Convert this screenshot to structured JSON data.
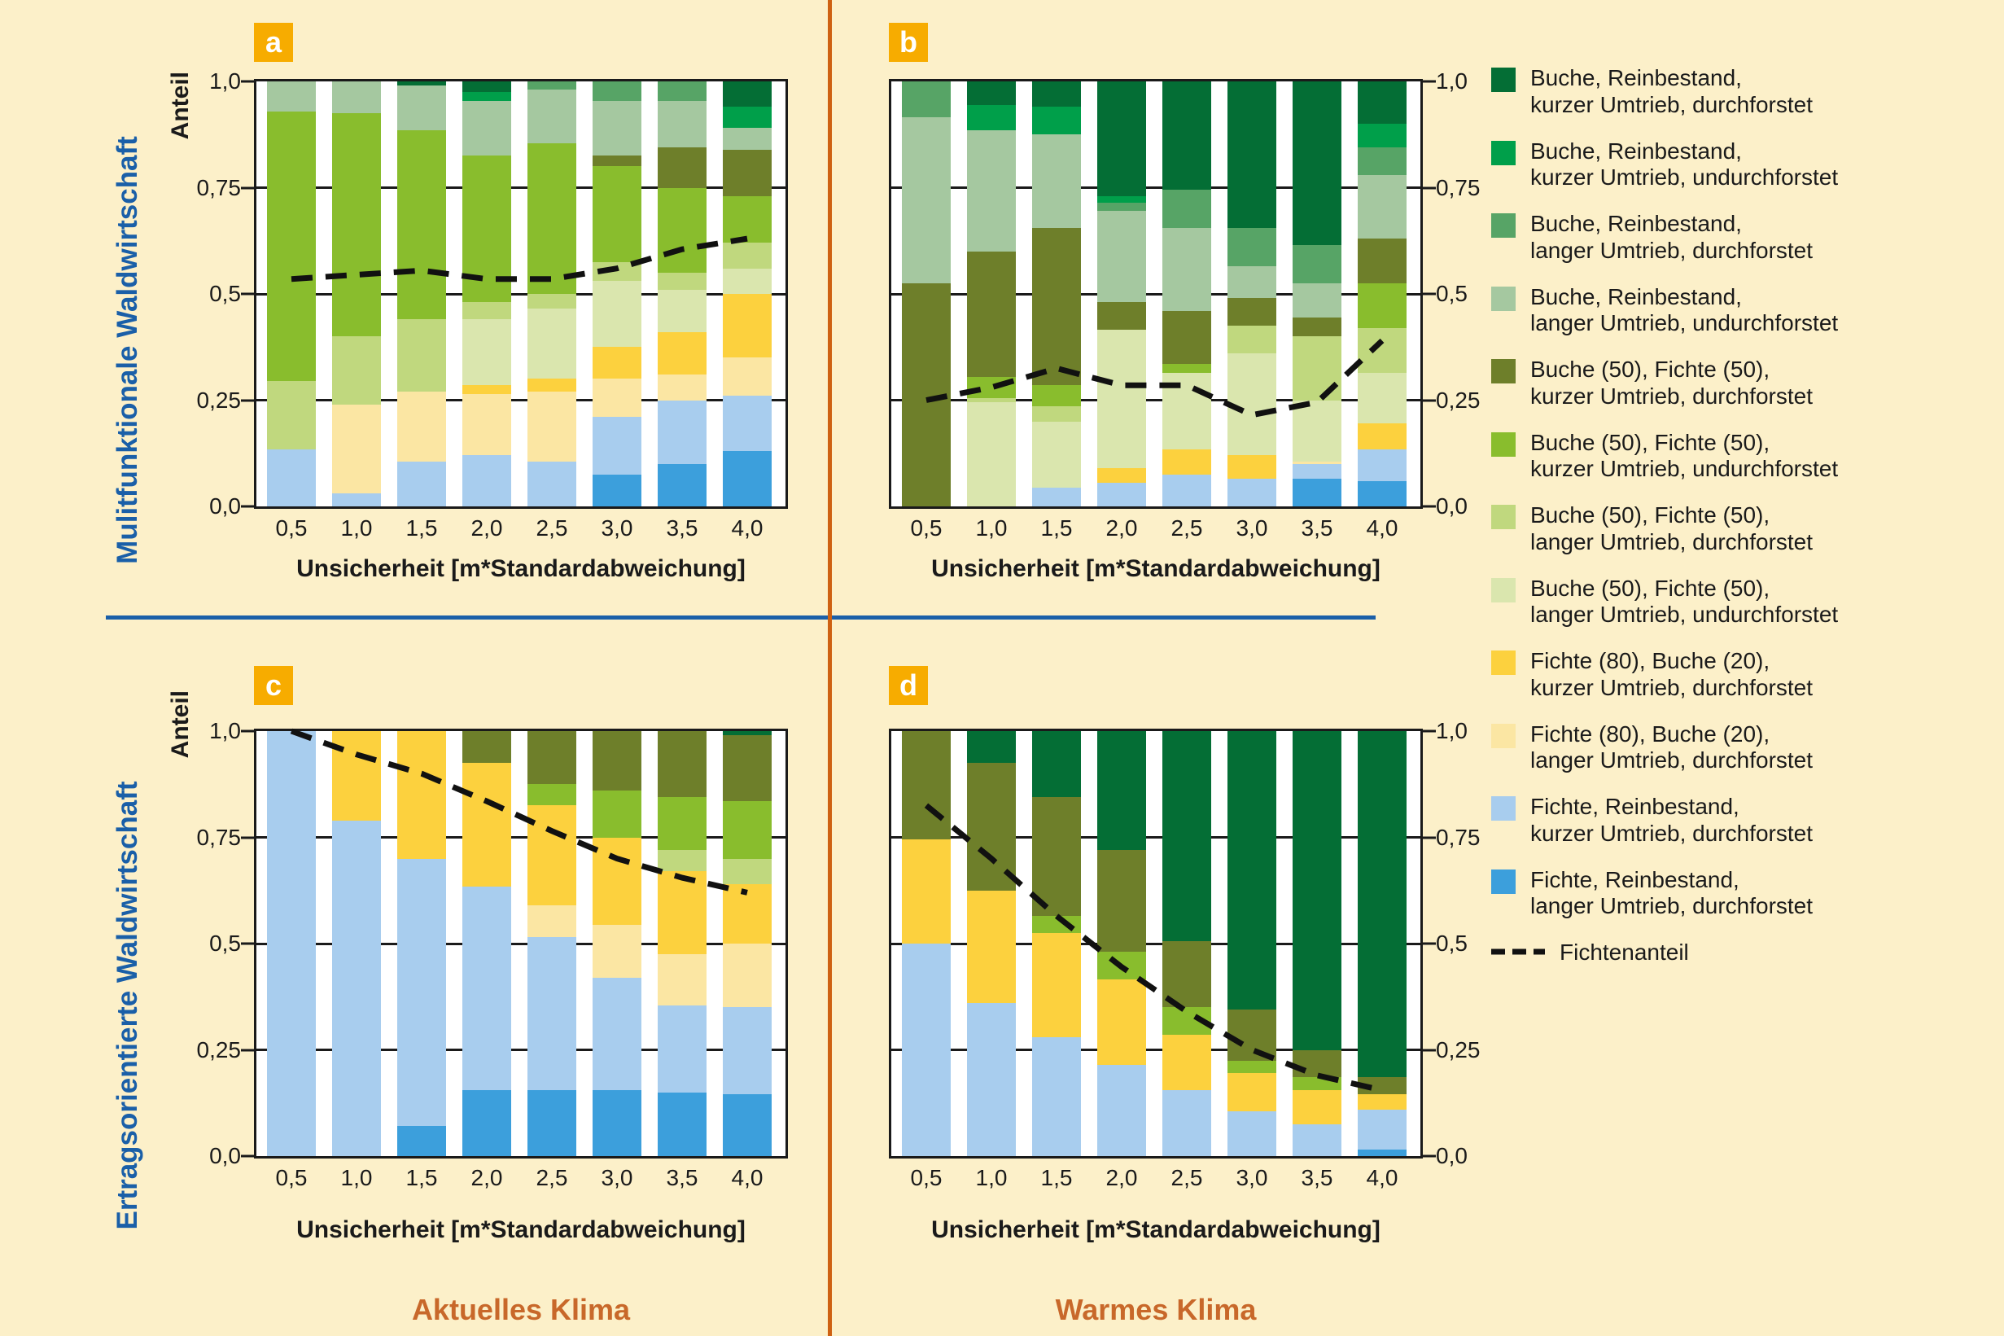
{
  "badges": {
    "a": "a",
    "b": "b",
    "c": "c",
    "d": "d"
  },
  "row_labels": {
    "top": "Mulitfunktionale Waldwirtschaft",
    "bottom": "Ertragsorientierte Waldwirtschaft"
  },
  "col_labels": {
    "left": "Aktuelles Klima",
    "right": "Warmes Klima"
  },
  "axis": {
    "y_label": "Anteil",
    "x_label": "Unsicherheit [m*Standardabweichung]",
    "y_ticks": [
      "1,0",
      "0,75",
      "0,5",
      "0,25",
      "0,0"
    ],
    "x_ticks": [
      "0,5",
      "1,0",
      "1,5",
      "2,0",
      "2,5",
      "3,0",
      "3,5",
      "4,0"
    ]
  },
  "colors": {
    "background": "#FCF0C9",
    "badge": "#F7AC00",
    "accent_blue": "#1A5FA8",
    "climate_orange": "#C8682A",
    "divider_orange": "#CE6112",
    "axis_black": "#1a1a1a",
    "line_black": "#111111",
    "FRld": "#3C9FDC",
    "FRkd": "#A8CDEE",
    "FBld": "#FBE6A3",
    "FBkd": "#FCD13E",
    "BFlu": "#DAE6AE",
    "BFld": "#C0D87E",
    "BFku": "#89BD2D",
    "BFkd": "#6E7F2A",
    "BuRlu": "#A5C8A0",
    "BuRld": "#57A466",
    "BuRku": "#009F4A",
    "BuRkd": "#046E35"
  },
  "stack_order": [
    "FRld",
    "FRkd",
    "FBld",
    "FBkd",
    "BFlu",
    "BFld",
    "BFku",
    "BFkd",
    "BuRlu",
    "BuRld",
    "BuRku",
    "BuRkd"
  ],
  "legend": [
    {
      "key": "BuRkd",
      "line1": "Buche, Reinbestand,",
      "line2": "kurzer Umtrieb, durchforstet"
    },
    {
      "key": "BuRku",
      "line1": "Buche, Reinbestand,",
      "line2": "kurzer Umtrieb, undurchforstet"
    },
    {
      "key": "BuRld",
      "line1": "Buche, Reinbestand,",
      "line2": "langer Umtrieb, durchforstet"
    },
    {
      "key": "BuRlu",
      "line1": "Buche, Reinbestand,",
      "line2": "langer Umtrieb, undurchforstet"
    },
    {
      "key": "BFkd",
      "line1": "Buche (50), Fichte (50),",
      "line2": "kurzer Umtrieb, durchforstet"
    },
    {
      "key": "BFku",
      "line1": "Buche (50), Fichte (50),",
      "line2": "kurzer Umtrieb, undurchforstet"
    },
    {
      "key": "BFld",
      "line1": "Buche (50), Fichte (50),",
      "line2": "langer Umtrieb, durchforstet"
    },
    {
      "key": "BFlu",
      "line1": "Buche (50), Fichte (50),",
      "line2": "langer Umtrieb, undurchforstet"
    },
    {
      "key": "FBkd",
      "line1": "Fichte (80), Buche (20),",
      "line2": "kurzer Umtrieb, durchforstet"
    },
    {
      "key": "FBld",
      "line1": "Fichte (80), Buche (20),",
      "line2": "langer Umtrieb, durchforstet"
    },
    {
      "key": "FRkd",
      "line1": "Fichte, Reinbestand,",
      "line2": "kurzer Umtrieb, durchforstet"
    },
    {
      "key": "FRld",
      "line1": "Fichte, Reinbestand,",
      "line2": "langer Umtrieb, durchforstet"
    }
  ],
  "legend_line_label": "Fichtenanteil",
  "chart_data": [
    {
      "id": "a",
      "type": "bar",
      "stacked": true,
      "axis_side": "left",
      "categories": [
        "0,5",
        "1,0",
        "1,5",
        "2,0",
        "2,5",
        "3,0",
        "3,5",
        "4,0"
      ],
      "ylim": [
        0,
        1
      ],
      "grid": true,
      "series": {
        "FRld": [
          0,
          0,
          0,
          0,
          0,
          0.075,
          0.1,
          0.13
        ],
        "FRkd": [
          0.135,
          0.03,
          0.105,
          0.12,
          0.105,
          0.135,
          0.15,
          0.13
        ],
        "FBld": [
          0,
          0.21,
          0.165,
          0.145,
          0.165,
          0.09,
          0.06,
          0.09
        ],
        "FBkd": [
          0,
          0,
          0,
          0.02,
          0.03,
          0.075,
          0.1,
          0.15
        ],
        "BFlu": [
          0,
          0,
          0,
          0.155,
          0.165,
          0.155,
          0.1,
          0.06
        ],
        "BFld": [
          0.16,
          0.16,
          0.17,
          0.04,
          0.035,
          0.045,
          0.04,
          0.06
        ],
        "BFku": [
          0.635,
          0.525,
          0.445,
          0.345,
          0.355,
          0.225,
          0.2,
          0.11
        ],
        "BFkd": [
          0,
          0,
          0,
          0,
          0,
          0.025,
          0.095,
          0.11
        ],
        "BuRlu": [
          0.07,
          0.075,
          0.105,
          0.13,
          0.125,
          0.13,
          0.11,
          0.05
        ],
        "BuRld": [
          0,
          0,
          0,
          0,
          0.02,
          0.045,
          0.045,
          0
        ],
        "BuRku": [
          0,
          0,
          0,
          0.02,
          0,
          0,
          0,
          0.05
        ],
        "BuRkd": [
          0,
          0,
          0.01,
          0.025,
          0,
          0,
          0,
          0.06
        ]
      },
      "line": {
        "name": "Fichtenanteil",
        "values": [
          0.535,
          0.545,
          0.555,
          0.535,
          0.535,
          0.56,
          0.605,
          0.63
        ]
      }
    },
    {
      "id": "b",
      "type": "bar",
      "stacked": true,
      "axis_side": "right",
      "categories": [
        "0,5",
        "1,0",
        "1,5",
        "2,0",
        "2,5",
        "3,0",
        "3,5",
        "4,0"
      ],
      "ylim": [
        0,
        1
      ],
      "grid": true,
      "series": {
        "FRld": [
          0,
          0,
          0,
          0,
          0,
          0,
          0.065,
          0.06
        ],
        "FRkd": [
          0,
          0,
          0.045,
          0.055,
          0.075,
          0.065,
          0.035,
          0.075
        ],
        "FBld": [
          0,
          0,
          0,
          0,
          0,
          0,
          0.005,
          0
        ],
        "FBkd": [
          0,
          0,
          0,
          0.035,
          0.06,
          0.055,
          0,
          0.06
        ],
        "BFlu": [
          0,
          0.245,
          0.155,
          0.325,
          0.18,
          0.24,
          0.145,
          0.12
        ],
        "BFld": [
          0,
          0.01,
          0.035,
          0,
          0,
          0.065,
          0.15,
          0.105
        ],
        "BFku": [
          0,
          0.05,
          0.05,
          0,
          0.02,
          0,
          0,
          0.105
        ],
        "BFkd": [
          0.525,
          0.295,
          0.37,
          0.065,
          0.125,
          0.065,
          0.045,
          0.105
        ],
        "BuRlu": [
          0.39,
          0.285,
          0.22,
          0.215,
          0.195,
          0.075,
          0.08,
          0.15
        ],
        "BuRld": [
          0.085,
          0,
          0,
          0.02,
          0.09,
          0.09,
          0.09,
          0.065
        ],
        "BuRku": [
          0,
          0.06,
          0.065,
          0.015,
          0,
          0,
          0,
          0.055
        ],
        "BuRkd": [
          0,
          0.055,
          0.06,
          0.27,
          0.255,
          0.345,
          0.385,
          0.1
        ]
      },
      "line": {
        "name": "Fichtenanteil",
        "values": [
          0.25,
          0.28,
          0.325,
          0.285,
          0.285,
          0.215,
          0.245,
          0.39
        ]
      }
    },
    {
      "id": "c",
      "type": "bar",
      "stacked": true,
      "axis_side": "left",
      "categories": [
        "0,5",
        "1,0",
        "1,5",
        "2,0",
        "2,5",
        "3,0",
        "3,5",
        "4,0"
      ],
      "ylim": [
        0,
        1
      ],
      "grid": true,
      "series": {
        "FRld": [
          0,
          0,
          0.07,
          0.155,
          0.155,
          0.155,
          0.15,
          0.145
        ],
        "FRkd": [
          1.0,
          0.79,
          0.63,
          0.48,
          0.36,
          0.265,
          0.205,
          0.205
        ],
        "FBld": [
          0,
          0,
          0,
          0,
          0.075,
          0.125,
          0.12,
          0.15
        ],
        "FBkd": [
          0,
          0.21,
          0.3,
          0.29,
          0.235,
          0.205,
          0.195,
          0.14
        ],
        "BFlu": [
          0,
          0,
          0,
          0,
          0,
          0,
          0,
          0
        ],
        "BFld": [
          0,
          0,
          0,
          0,
          0,
          0,
          0.05,
          0.06
        ],
        "BFku": [
          0,
          0,
          0,
          0,
          0.05,
          0.11,
          0.125,
          0.135
        ],
        "BFkd": [
          0,
          0,
          0,
          0.075,
          0.125,
          0.14,
          0.155,
          0.155
        ],
        "BuRlu": [
          0,
          0,
          0,
          0,
          0,
          0,
          0,
          0
        ],
        "BuRld": [
          0,
          0,
          0,
          0,
          0,
          0,
          0,
          0
        ],
        "BuRku": [
          0,
          0,
          0,
          0,
          0,
          0,
          0,
          0
        ],
        "BuRkd": [
          0,
          0,
          0,
          0,
          0,
          0,
          0,
          0.01
        ]
      },
      "line": {
        "name": "Fichtenanteil",
        "values": [
          1.0,
          0.945,
          0.9,
          0.835,
          0.765,
          0.7,
          0.655,
          0.62
        ]
      }
    },
    {
      "id": "d",
      "type": "bar",
      "stacked": true,
      "axis_side": "right",
      "categories": [
        "0,5",
        "1,0",
        "1,5",
        "2,0",
        "2,5",
        "3,0",
        "3,5",
        "4,0"
      ],
      "ylim": [
        0,
        1
      ],
      "grid": true,
      "series": {
        "FRld": [
          0,
          0,
          0,
          0,
          0,
          0,
          0,
          0.015
        ],
        "FRkd": [
          0.5,
          0.36,
          0.28,
          0.215,
          0.155,
          0.105,
          0.075,
          0.095
        ],
        "FBld": [
          0,
          0,
          0,
          0,
          0,
          0,
          0,
          0
        ],
        "FBkd": [
          0.245,
          0.265,
          0.245,
          0.2,
          0.13,
          0.09,
          0.08,
          0.035
        ],
        "BFlu": [
          0,
          0,
          0,
          0,
          0,
          0,
          0,
          0
        ],
        "BFld": [
          0,
          0,
          0,
          0,
          0,
          0,
          0,
          0
        ],
        "BFku": [
          0,
          0,
          0.04,
          0.065,
          0.065,
          0.03,
          0.03,
          0
        ],
        "BFkd": [
          0.255,
          0.3,
          0.28,
          0.24,
          0.155,
          0.12,
          0.065,
          0.04
        ],
        "BuRlu": [
          0,
          0,
          0,
          0,
          0,
          0,
          0,
          0
        ],
        "BuRld": [
          0,
          0,
          0,
          0,
          0,
          0,
          0,
          0
        ],
        "BuRku": [
          0,
          0,
          0,
          0,
          0,
          0,
          0,
          0
        ],
        "BuRkd": [
          0,
          0.075,
          0.155,
          0.28,
          0.495,
          0.655,
          0.75,
          0.815
        ]
      },
      "line": {
        "name": "Fichtenanteil",
        "values": [
          0.825,
          0.7,
          0.565,
          0.445,
          0.34,
          0.25,
          0.19,
          0.155
        ]
      }
    }
  ]
}
